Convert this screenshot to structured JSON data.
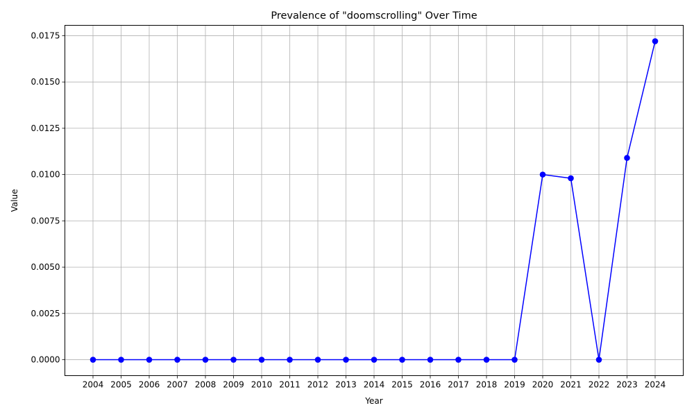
{
  "chart_data": {
    "type": "line",
    "title": "Prevalence of \"doomscrolling\" Over Time",
    "xlabel": "Year",
    "ylabel": "Value",
    "categories": [
      "2004",
      "2005",
      "2006",
      "2007",
      "2008",
      "2009",
      "2010",
      "2011",
      "2012",
      "2013",
      "2014",
      "2015",
      "2016",
      "2017",
      "2018",
      "2019",
      "2020",
      "2021",
      "2022",
      "2023",
      "2024"
    ],
    "series": [
      {
        "values": [
          0,
          0,
          0,
          0,
          0,
          0,
          0,
          0,
          0,
          0,
          0,
          0,
          0,
          0,
          0,
          0,
          0.01,
          0.0098,
          0,
          0.0109,
          0.0172
        ],
        "color": "#0000ff",
        "marker": "circle"
      }
    ],
    "ylim": [
      -0.00086,
      0.01806
    ],
    "yticks": [
      "0.0000",
      "0.0025",
      "0.0050",
      "0.0075",
      "0.0100",
      "0.0125",
      "0.0150",
      "0.0175"
    ],
    "ytick_values": [
      0,
      0.0025,
      0.005,
      0.0075,
      0.01,
      0.0125,
      0.015,
      0.0175
    ],
    "grid": true,
    "legend": "none"
  }
}
